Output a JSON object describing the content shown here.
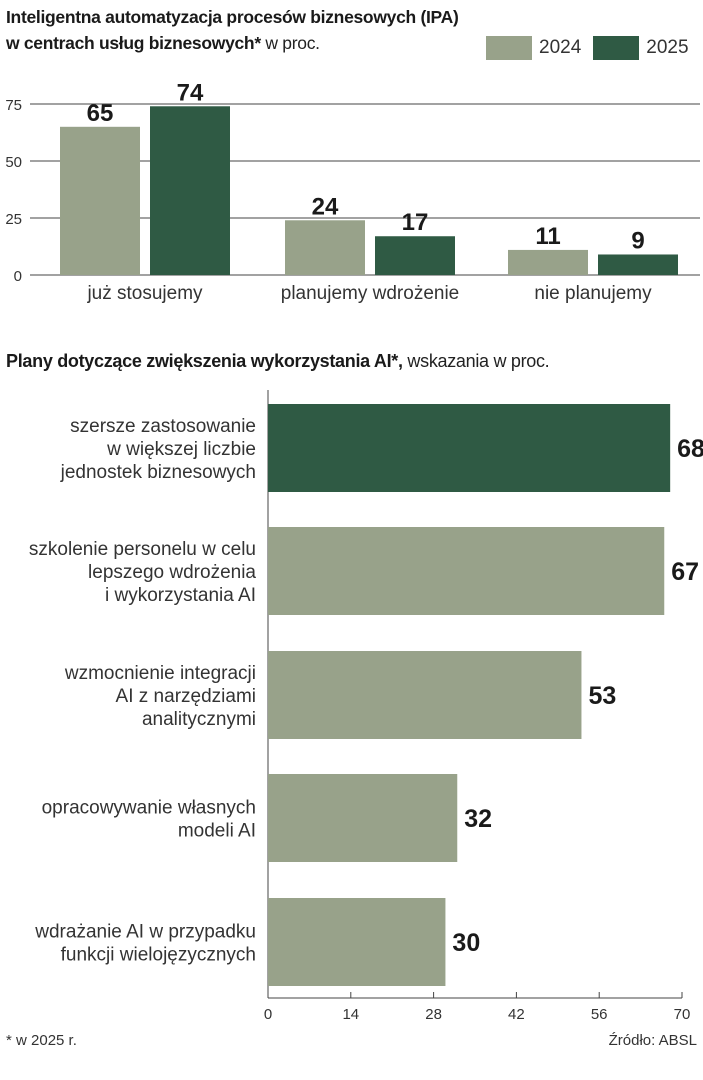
{
  "colors": {
    "c2024": "#98a28a",
    "c2025": "#2f5a44",
    "grid": "#444444",
    "text": "#222222"
  },
  "chart1": {
    "title_bold": "Inteligentna automatyzacja procesów biznesowych (IPA) w centrach usług biznesowych*",
    "title_rest": " w proc.",
    "legend": [
      "2024",
      "2025"
    ]
  },
  "chart2": {
    "title_bold": "Plany dotyczące zwiększenia wykorzystania AI*,",
    "title_rest": " wskazania w proc."
  },
  "chart_data": [
    {
      "type": "bar",
      "title": "Inteligentna automatyzacja procesów biznesowych (IPA) w centrach usług biznesowych* w proc.",
      "categories": [
        "już stosujemy",
        "planujemy wdrożenie",
        "nie planujemy"
      ],
      "series": [
        {
          "name": "2024",
          "values": [
            65,
            24,
            11
          ]
        },
        {
          "name": "2025",
          "values": [
            74,
            17,
            9
          ]
        }
      ],
      "yticks": [
        0,
        25,
        50,
        75
      ],
      "ylim": [
        0,
        80
      ],
      "xlabel": "",
      "ylabel": "",
      "legend": "top-right"
    },
    {
      "type": "bar",
      "orientation": "horizontal",
      "title": "Plany dotyczące zwiększenia wykorzystania AI*, wskazania w proc.",
      "categories": [
        [
          "szersze zastosowanie",
          "w większej liczbie",
          "jednostek biznesowych"
        ],
        [
          "szkolenie personelu w celu",
          "lepszego wdrożenia",
          "i wykorzystania AI"
        ],
        [
          "wzmocnienie  integracji",
          "AI z narzędziami",
          "analitycznymi"
        ],
        [
          "opracowywanie własnych",
          "modeli AI"
        ],
        [
          "wdrażanie AI w przypadku",
          "funkcji wielojęzycznych"
        ]
      ],
      "values": [
        68,
        67,
        53,
        32,
        30
      ],
      "highlight_index": 0,
      "xticks": [
        0,
        14,
        28,
        42,
        56,
        70
      ],
      "xlim": [
        0,
        70
      ]
    }
  ],
  "footer": {
    "note": "* w 2025 r.",
    "source": "Źródło:  ABSL"
  }
}
